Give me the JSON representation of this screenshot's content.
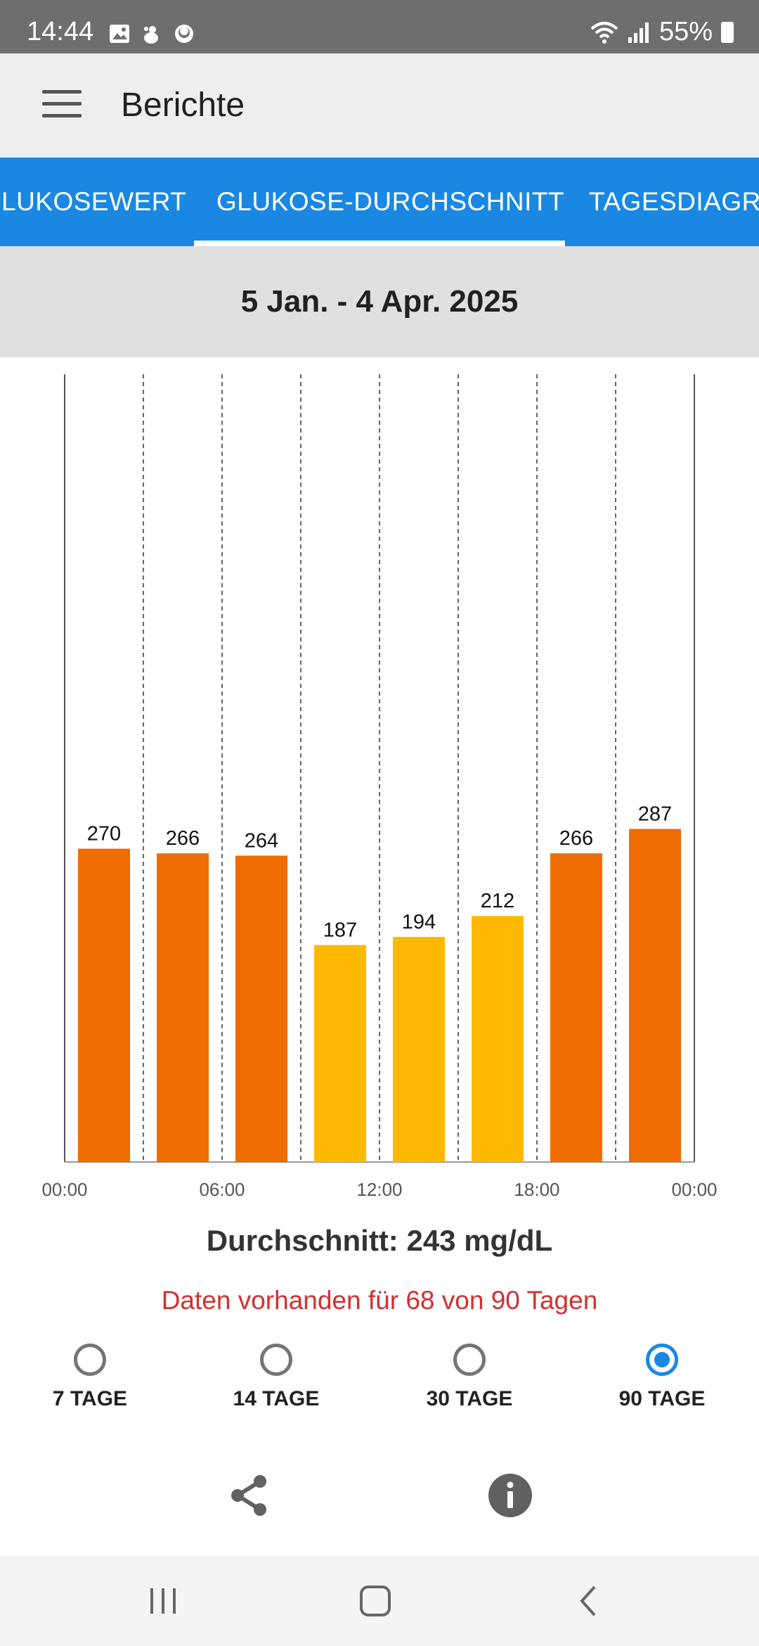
{
  "status_bar": {
    "time": "14:44",
    "battery": "55%",
    "icons": [
      "gallery-icon",
      "notification-icon",
      "app-icon",
      "wifi-icon",
      "signal-icon",
      "battery-icon"
    ]
  },
  "app_bar": {
    "title": "Berichte",
    "menu_icon": "menu-icon"
  },
  "tabs": [
    {
      "label": "LUKOSEWERT",
      "selected": false
    },
    {
      "label": "GLUKOSE-DURCHSCHNITT",
      "selected": true
    },
    {
      "label": "TAGESDIAGRA",
      "selected": false
    }
  ],
  "date_range": "5 Jan. - 4 Apr. 2025",
  "chart_data": {
    "type": "bar",
    "x_tick_labels": [
      "00:00",
      "06:00",
      "12:00",
      "18:00",
      "00:00"
    ],
    "categories": [
      "00:00-03:00",
      "03:00-06:00",
      "06:00-09:00",
      "09:00-12:00",
      "12:00-15:00",
      "15:00-18:00",
      "18:00-21:00",
      "21:00-24:00"
    ],
    "values": [
      270,
      266,
      264,
      187,
      194,
      212,
      266,
      287
    ],
    "data_labels": [
      "270",
      "266",
      "264",
      "187",
      "194",
      "212",
      "266",
      "287"
    ],
    "bar_colors": [
      "#ef6c00",
      "#ef6c00",
      "#ef6c00",
      "#ffb900",
      "#ffb900",
      "#ffb900",
      "#ef6c00",
      "#ef6c00"
    ],
    "ylim": [
      0,
      300
    ],
    "grid": "vertical dashed lines between bars",
    "title": "",
    "xlabel": "",
    "ylabel": ""
  },
  "summary": {
    "average": "Durchschnitt: 243 mg/dL",
    "data_note": "Daten vorhanden für 68 von 90 Tagen"
  },
  "period_options": [
    {
      "label": "7 TAGE",
      "selected": false
    },
    {
      "label": "14 TAGE",
      "selected": false
    },
    {
      "label": "30 TAGE",
      "selected": false
    },
    {
      "label": "90 TAGE",
      "selected": true
    }
  ],
  "actions": {
    "share_icon": "share-icon",
    "info_icon": "info-icon"
  },
  "nav_bar": {
    "icons": [
      "recent-apps-icon",
      "home-icon",
      "back-icon"
    ]
  },
  "colors": {
    "accent": "#1a88e2",
    "high": "#ef6c00",
    "medium": "#ffb900",
    "warning_text": "#d32f2f"
  }
}
